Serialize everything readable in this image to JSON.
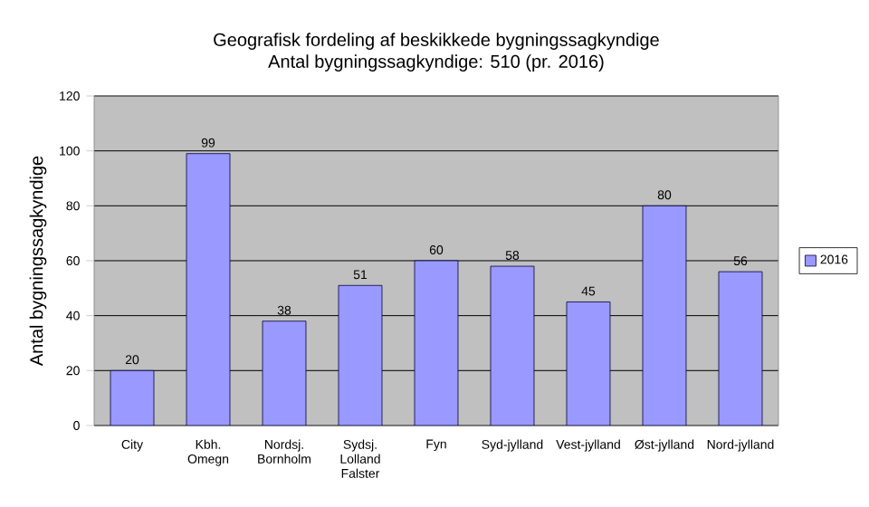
{
  "chart_data": {
    "type": "bar",
    "title": "Geografisk fordeling af beskikkede bygningssagkyndige",
    "subtitle": "Antal bygningssagkyndige: 510 (pr. 2016)",
    "ylabel": "Antal bygningssagkyndige",
    "categories": [
      "City",
      "Kbh. Omegn",
      "Nordsj. Bornholm",
      "Sydsj. Lolland Falster",
      "Fyn",
      "Syd-jylland",
      "Vest-jylland",
      "Øst-jylland",
      "Nord-jylland"
    ],
    "series": [
      {
        "name": "2016",
        "color": "#9999ff",
        "values": [
          20,
          99,
          38,
          51,
          60,
          58,
          45,
          80,
          56
        ]
      }
    ],
    "ylim": [
      0,
      120
    ],
    "yticks": [
      0,
      20,
      40,
      60,
      80,
      100,
      120
    ],
    "grid": "y",
    "legend": "right",
    "data_labels": true
  }
}
